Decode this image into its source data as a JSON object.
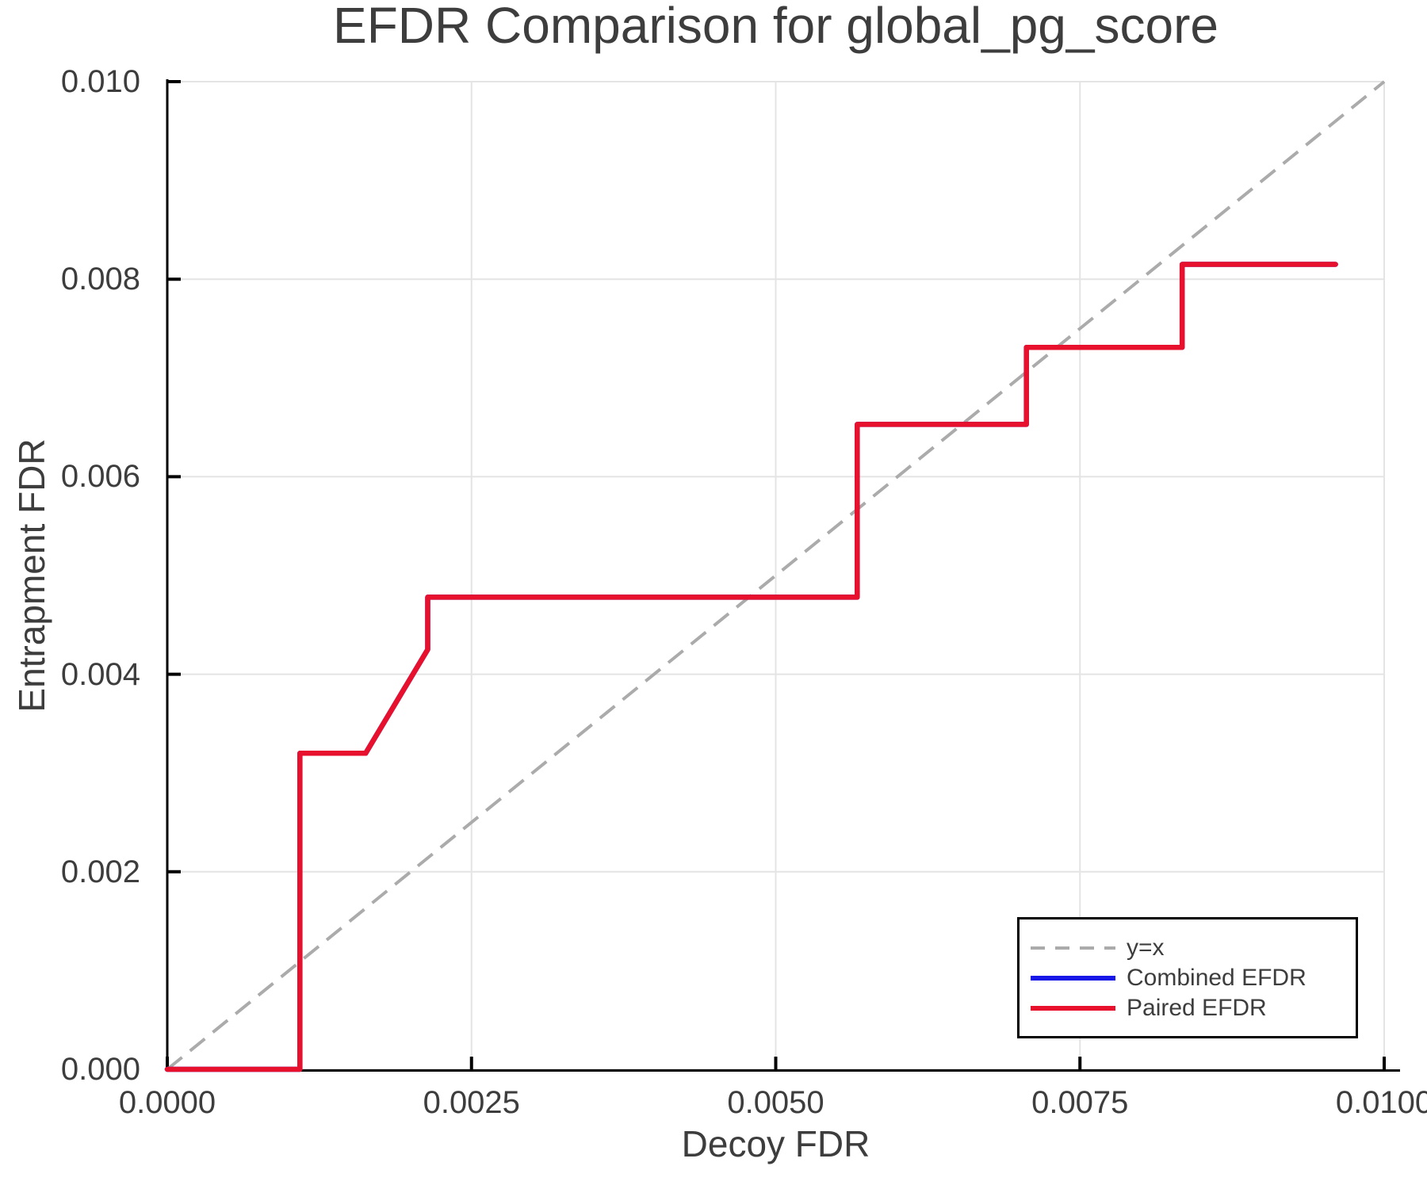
{
  "chart_data": {
    "type": "line",
    "title": "EFDR Comparison for global_pg_score",
    "xlabel": "Decoy FDR",
    "ylabel": "Entrapment FDR",
    "xlim": [
      0.0,
      0.01
    ],
    "ylim": [
      0.0,
      0.01
    ],
    "x_ticks": [
      0.0,
      0.0025,
      0.005,
      0.0075,
      0.01
    ],
    "x_tick_labels": [
      "0.0000",
      "0.0025",
      "0.0050",
      "0.0075",
      "0.0100"
    ],
    "y_ticks": [
      0.0,
      0.002,
      0.004,
      0.006,
      0.008,
      0.01
    ],
    "y_tick_labels": [
      "0.000",
      "0.002",
      "0.004",
      "0.006",
      "0.008",
      "0.010"
    ],
    "grid": true,
    "legend_position": "bottom-right",
    "series": [
      {
        "name": "y=x",
        "color": "#ababab",
        "dash": true,
        "points": [
          [
            0.0,
            0.0
          ],
          [
            0.01,
            0.01
          ]
        ]
      },
      {
        "name": "Combined EFDR",
        "color": "#1717e8",
        "dash": false,
        "points": [
          [
            0.0,
            0.0
          ],
          [
            0.00109,
            0.0
          ],
          [
            0.00109,
            0.0032
          ],
          [
            0.00163,
            0.0032
          ],
          [
            0.00214,
            0.00425
          ],
          [
            0.00214,
            0.00478
          ],
          [
            0.00567,
            0.00478
          ],
          [
            0.00567,
            0.00653
          ],
          [
            0.00706,
            0.00653
          ],
          [
            0.00706,
            0.00731
          ],
          [
            0.00834,
            0.00731
          ],
          [
            0.00834,
            0.00815
          ],
          [
            0.0096,
            0.00815
          ]
        ]
      },
      {
        "name": "Paired EFDR",
        "color": "#e8112d",
        "dash": false,
        "points": [
          [
            0.0,
            0.0
          ],
          [
            0.00109,
            0.0
          ],
          [
            0.00109,
            0.0032
          ],
          [
            0.00163,
            0.0032
          ],
          [
            0.00214,
            0.00425
          ],
          [
            0.00214,
            0.00478
          ],
          [
            0.00567,
            0.00478
          ],
          [
            0.00567,
            0.00653
          ],
          [
            0.00706,
            0.00653
          ],
          [
            0.00706,
            0.00731
          ],
          [
            0.00834,
            0.00731
          ],
          [
            0.00834,
            0.00815
          ],
          [
            0.0096,
            0.00815
          ]
        ]
      }
    ]
  },
  "colors": {
    "grid": "#e4e4e4",
    "axis": "#000000",
    "text": "#3d3d3d",
    "background": "#ffffff"
  }
}
